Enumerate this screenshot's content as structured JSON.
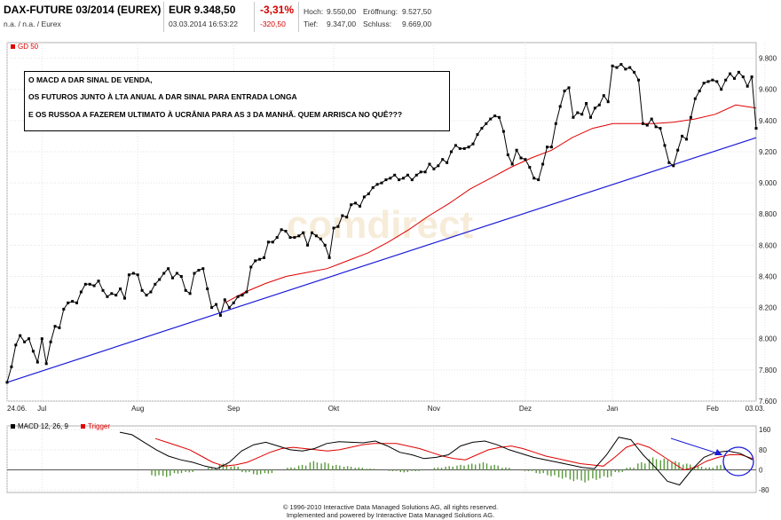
{
  "header": {
    "symbol": "DAX-FUTURE 03/2014 (EUREX)",
    "sub": "n.a. / n.a. / Eurex",
    "price": "EUR 9.348,50",
    "timestamp": "03.03.2014 16:53:22",
    "change_pct": "-3,31%",
    "change_abs": "-320,50",
    "high_label": "Hoch:",
    "high": "9.550,00",
    "open_label": "Eröffnung:",
    "open": "9.527,50",
    "low_label": "Tief:",
    "low": "9.347,00",
    "close_label": "Schluss:",
    "close": "9.669,00"
  },
  "annotation": {
    "line1": "O MACD A DAR SINAL DE VENDA,",
    "line2": "OS FUTUROS JUNTO À LTA ANUAL A DAR SINAL PARA ENTRADA LONGA",
    "line3": "E OS RUSSOA A FAZEREM ULTIMATO À UCRÂNIA PARA AS 3 DA MANHÃ.  QUEM ARRISCA  NO QUÊ???"
  },
  "watermark": "comdirect",
  "copyright": {
    "line1": "© 1996-2010 Interactive Data Managed Solutions AG, all rights reserved.",
    "line2": "Implemented and powered by Interactive Data Managed Solutions AG."
  },
  "colors": {
    "price": "#000000",
    "ma": "#e00000",
    "trend": "#1a1ad8",
    "macd": "#000000",
    "trigger": "#e00000",
    "histogram": "#5a9a3c",
    "annotation_circle": "#1a1ad8"
  },
  "chart_data": [
    {
      "type": "line",
      "legend": [
        "GD 50"
      ],
      "legend_placement": "top-left",
      "grid": true,
      "x_tick_labels": [
        "24.06.",
        "Jul",
        "Aug",
        "Sep",
        "Okt",
        "Nov",
        "Dez",
        "Jan",
        "Feb",
        "03.03."
      ],
      "x_tick_index": [
        0,
        8,
        30,
        52,
        75,
        98,
        119,
        139,
        162,
        174
      ],
      "y_ticks": [
        7600,
        7800,
        8000,
        8200,
        8400,
        8600,
        8800,
        9000,
        9200,
        9400,
        9600,
        9800
      ],
      "y_tick_labels": [
        "7.600",
        "7.800",
        "8.000",
        "8.200",
        "8.400",
        "8.600",
        "8.800",
        "9.000",
        "9.200",
        "9.400",
        "9.600",
        "9.800"
      ],
      "ylim": [
        7600,
        9900
      ],
      "series": [
        {
          "name": "",
          "marker": "square",
          "values": [
            7720,
            7820,
            7960,
            8020,
            7980,
            8000,
            7920,
            7850,
            8000,
            7840,
            7980,
            8080,
            8070,
            8190,
            8230,
            8240,
            8230,
            8300,
            8350,
            8350,
            8340,
            8370,
            8310,
            8270,
            8290,
            8280,
            8320,
            8260,
            8410,
            8420,
            8410,
            8310,
            8280,
            8300,
            8350,
            8380,
            8420,
            8450,
            8390,
            8420,
            8400,
            8310,
            8290,
            8420,
            8440,
            8450,
            8320,
            8200,
            8220,
            8150,
            8250,
            8200,
            8230,
            8270,
            8280,
            8300,
            8460,
            8500,
            8510,
            8520,
            8620,
            8620,
            8650,
            8700,
            8690,
            8650,
            8650,
            8660,
            8680,
            8600,
            8680,
            8660,
            8640,
            8600,
            8520,
            8710,
            8720,
            8790,
            8780,
            8860,
            8870,
            8850,
            8910,
            8930,
            8970,
            8990,
            9000,
            9020,
            9030,
            9050,
            9020,
            9030,
            9050,
            9020,
            9050,
            9070,
            9070,
            9120,
            9090,
            9110,
            9150,
            9130,
            9200,
            9240,
            9220,
            9220,
            9230,
            9250,
            9310,
            9350,
            9380,
            9410,
            9430,
            9420,
            9330,
            9180,
            9120,
            9210,
            9160,
            9150,
            9100,
            9030,
            9020,
            9120,
            9230,
            9230,
            9380,
            9490,
            9590,
            9610,
            9420,
            9450,
            9440,
            9510,
            9420,
            9480,
            9500,
            9560,
            9520,
            9750,
            9740,
            9760,
            9730,
            9740,
            9710,
            9660,
            9380,
            9370,
            9410,
            9360,
            9350,
            9240,
            9130,
            9110,
            9210,
            9300,
            9280,
            9420,
            9540,
            9590,
            9640,
            9650,
            9660,
            9650,
            9600,
            9660,
            9700,
            9670,
            9710,
            9680,
            9620,
            9680,
            9350
          ]
        },
        {
          "name": "GD 50",
          "values": [
            8230,
            8300,
            8355,
            8400,
            8425,
            8450,
            8500,
            8550,
            8620,
            8700,
            8790,
            8870,
            8960,
            9030,
            9100,
            9160,
            9210,
            9290,
            9350,
            9380,
            9380,
            9380,
            9390,
            9410,
            9440,
            9500,
            9480
          ]
        },
        {
          "name": "",
          "values": [
            7720,
            9290
          ]
        }
      ]
    },
    {
      "type": "line",
      "legend": [
        "MACD 12, 26, 9",
        "Trigger"
      ],
      "legend_placement": "top-left",
      "grid": true,
      "y_ticks": [
        -80,
        0,
        80,
        160
      ],
      "y_tick_labels": [
        "-80",
        "0",
        "80",
        "160"
      ],
      "ylim": [
        -90,
        175
      ],
      "series": [
        {
          "name": "MACD 12, 26, 9",
          "values": [
            150,
            140,
            110,
            80,
            55,
            40,
            30,
            15,
            5,
            30,
            75,
            100,
            110,
            95,
            80,
            75,
            85,
            105,
            112,
            110,
            108,
            115,
            95,
            70,
            60,
            45,
            50,
            60,
            95,
            110,
            115,
            100,
            80,
            65,
            50,
            40,
            30,
            20,
            10,
            5,
            60,
            130,
            120,
            60,
            10,
            -45,
            -60,
            0,
            50,
            70,
            75,
            65,
            40
          ]
        },
        {
          "name": "Trigger",
          "values": [
            125,
            110,
            95,
            80,
            55,
            30,
            15,
            20,
            30,
            50,
            70,
            85,
            90,
            85,
            80,
            75,
            80,
            90,
            100,
            105,
            105,
            105,
            95,
            85,
            70,
            55,
            45,
            40,
            60,
            80,
            90,
            95,
            85,
            70,
            55,
            45,
            35,
            25,
            20,
            15,
            50,
            90,
            105,
            90,
            60,
            30,
            0,
            10,
            35,
            50,
            60,
            60,
            45
          ]
        },
        {
          "name": "",
          "style": "histogram",
          "values": [
            -25,
            -28,
            -15,
            -10,
            0,
            10,
            25,
            15,
            -10,
            -20,
            -15,
            0,
            10,
            20,
            35,
            30,
            20,
            15,
            10,
            5,
            0,
            -5,
            -10,
            -5,
            0,
            10,
            15,
            20,
            25,
            30,
            20,
            10,
            0,
            -5,
            -15,
            -25,
            -35,
            -45,
            -50,
            -40,
            -30,
            -10,
            10,
            30,
            50,
            45,
            35,
            25,
            15,
            10,
            20
          ]
        }
      ]
    }
  ]
}
